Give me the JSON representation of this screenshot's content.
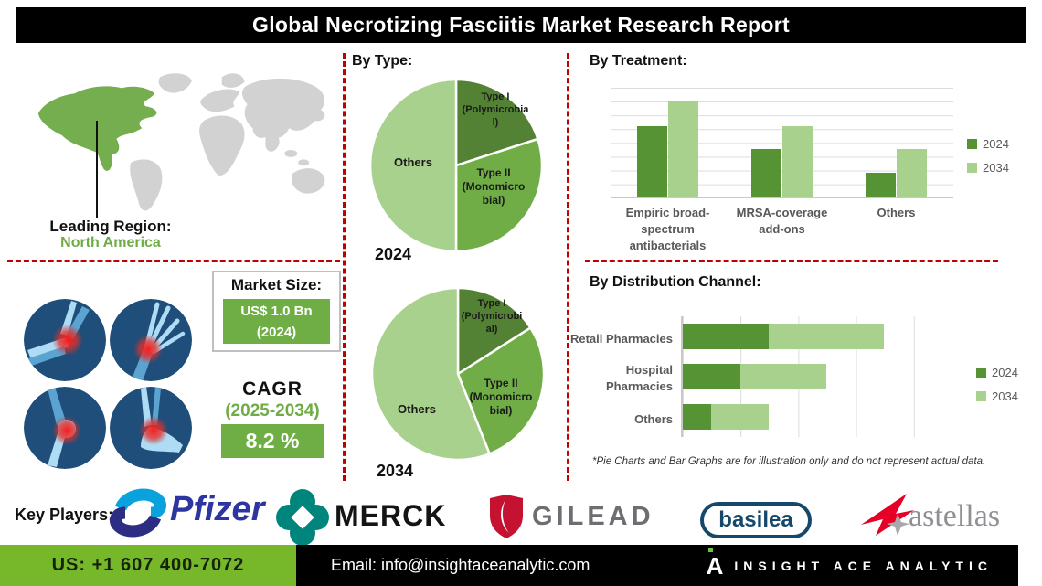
{
  "title": "Global Necrotizing Fasciitis Market Research Report",
  "colors": {
    "dark_green": "#569335",
    "mid_green": "#70AD47",
    "light_green": "#A9D18E",
    "red_dash": "#C00000",
    "footer_green": "#76B82A",
    "map_gray": "#D2D2D2",
    "map_highlight": "#74AE4E"
  },
  "map": {
    "heading": "Leading Region:",
    "region": "North America"
  },
  "market_size": {
    "heading": "Market Size:",
    "value": "US$ 1.0 Bn",
    "year": "(2024)"
  },
  "cagr": {
    "heading": "CAGR",
    "period": "(2025-2034)",
    "value": "8.2 %"
  },
  "sections": {
    "by_type": "By Type:",
    "by_treatment": "By Treatment:",
    "by_distribution": "By Distribution Channel:"
  },
  "footnote": "*Pie Charts and Bar Graphs are for illustration only and do not represent actual data.",
  "key_players": {
    "label": "Key Players:",
    "players": [
      "Pfizer",
      "MERCK",
      "GILEAD",
      "basilea",
      "astellas"
    ]
  },
  "footer": {
    "phone": "US: +1 607 400-7072",
    "email": "Email: info@insightaceanalytic.com",
    "brand": "INSIGHT ACE ANALYTIC"
  },
  "chart_data": [
    {
      "type": "pie",
      "year_label": "2024",
      "labels": [
        "Type I (Polymicrobial)",
        "Type II (Monomicrobial)",
        "Others"
      ],
      "labels_display": [
        "Type I\n(Polymicrobia\nl)",
        "Type II\n(Monomicro\nbial)",
        "Others"
      ],
      "values": [
        20,
        30,
        50
      ],
      "colors": [
        "#548235",
        "#70AD47",
        "#A9D18E"
      ]
    },
    {
      "type": "pie",
      "year_label": "2034",
      "labels": [
        "Type I (Polymicrobial)",
        "Type II (Monomicrobial)",
        "Others"
      ],
      "labels_display": [
        "Type I\n(Polymicrobi\nal)",
        "Type II\n(Monomicro\nbial)",
        "Others"
      ],
      "values": [
        16,
        28,
        56
      ],
      "colors": [
        "#548235",
        "#70AD47",
        "#A9D18E"
      ]
    },
    {
      "type": "bar",
      "title": "By Treatment:",
      "categories": [
        "Empiric broad-spectrum antibacterials",
        "MRSA-coverage add-ons",
        "Others"
      ],
      "series": [
        {
          "name": "2024",
          "values": [
            65,
            44,
            22
          ]
        },
        {
          "name": "2034",
          "values": [
            88,
            65,
            44
          ]
        }
      ],
      "ylim": [
        0,
        100
      ],
      "grid": true,
      "legend_position": "right"
    },
    {
      "type": "bar",
      "orientation": "horizontal-stacked",
      "title": "By Distribution Channel:",
      "categories": [
        "Retail Pharmacies",
        "Hospital Pharmacies",
        "Others"
      ],
      "series": [
        {
          "name": "2024",
          "values": [
            30,
            20,
            10
          ]
        },
        {
          "name": "2034",
          "values": [
            40,
            30,
            20
          ]
        }
      ],
      "xlim": [
        0,
        100
      ],
      "grid": true,
      "legend_position": "right"
    }
  ]
}
